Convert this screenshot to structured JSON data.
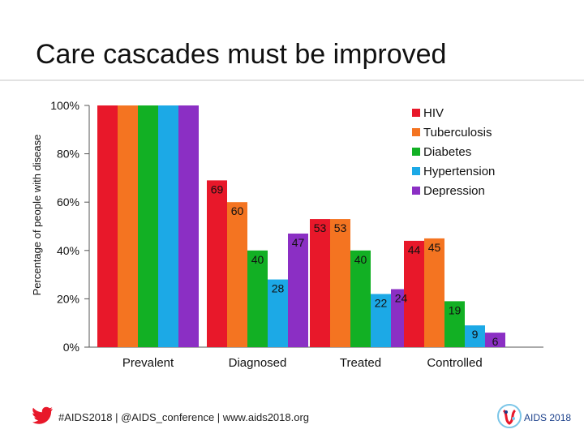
{
  "slide": {
    "title": "Care cascades must be improved"
  },
  "footer": {
    "text": "#AIDS2018 | @AIDS_conference | www.aids2018.org",
    "logo_text": "AIDS 2018",
    "icon": "twitter-bird-icon",
    "twitter_color": "#e8182a"
  },
  "chart_data": {
    "type": "bar",
    "ylabel": "Percentage of people with disease",
    "xlabel": "",
    "ylim": [
      0,
      100
    ],
    "yticks": [
      0,
      20,
      40,
      60,
      80,
      100
    ],
    "ytick_labels": [
      "0%",
      "20%",
      "40%",
      "60%",
      "80%",
      "100%"
    ],
    "categories": [
      "Prevalent",
      "Diagnosed",
      "Treated",
      "Controlled"
    ],
    "legend_position": "top-right",
    "grid": false,
    "series": [
      {
        "name": "HIV",
        "color": "#e8182a",
        "values": [
          100,
          69,
          53,
          44
        ],
        "labels": [
          "",
          "69",
          "53",
          "44"
        ]
      },
      {
        "name": "Tuberculosis",
        "color": "#f47421",
        "values": [
          100,
          60,
          53,
          45
        ],
        "labels": [
          "",
          "60",
          "53",
          "45"
        ]
      },
      {
        "name": "Diabetes",
        "color": "#12b024",
        "values": [
          100,
          40,
          40,
          19
        ],
        "labels": [
          "",
          "40",
          "40",
          "19"
        ]
      },
      {
        "name": "Hypertension",
        "color": "#1ca9e6",
        "values": [
          100,
          28,
          22,
          9
        ],
        "labels": [
          "",
          "28",
          "22",
          "9"
        ]
      },
      {
        "name": "Depression",
        "color": "#8b2fc4",
        "values": [
          100,
          47,
          24,
          6
        ],
        "labels": [
          "",
          "47",
          "24",
          "6"
        ]
      }
    ]
  }
}
